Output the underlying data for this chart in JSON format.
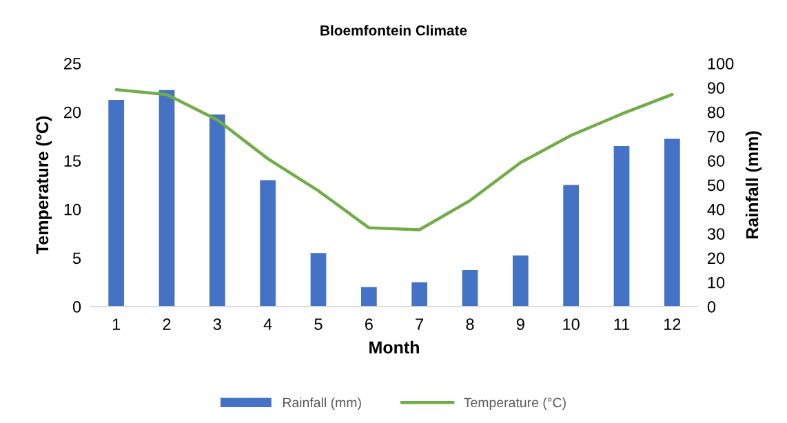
{
  "chart_data": {
    "type": "bar",
    "title": "Bloemfontein Climate",
    "xlabel": "Month",
    "ylabel": "Temperature (°C)",
    "y2label": "Rainfall (mm)",
    "categories": [
      "1",
      "2",
      "3",
      "4",
      "5",
      "6",
      "7",
      "8",
      "9",
      "10",
      "11",
      "12"
    ],
    "series": [
      {
        "name": "Rainfall (mm)",
        "axis": "y2",
        "color": "#4472c4",
        "values": [
          85,
          89,
          79,
          52,
          22,
          8,
          10,
          15,
          21,
          50,
          66,
          69
        ]
      },
      {
        "name": "Temperature (°C)",
        "type": "line",
        "axis": "y",
        "color": "#70ad47",
        "values": [
          22.3,
          21.8,
          19.2,
          15.2,
          11.9,
          8.1,
          7.9,
          10.9,
          14.8,
          17.6,
          19.8,
          21.8
        ]
      }
    ],
    "ylim": [
      0,
      25
    ],
    "yticks": [
      0,
      5,
      10,
      15,
      20,
      25
    ],
    "y2lim": [
      0,
      100
    ],
    "y2ticks": [
      0,
      10,
      20,
      30,
      40,
      50,
      60,
      70,
      80,
      90,
      100
    ],
    "grid": false,
    "legend": "bottom"
  }
}
